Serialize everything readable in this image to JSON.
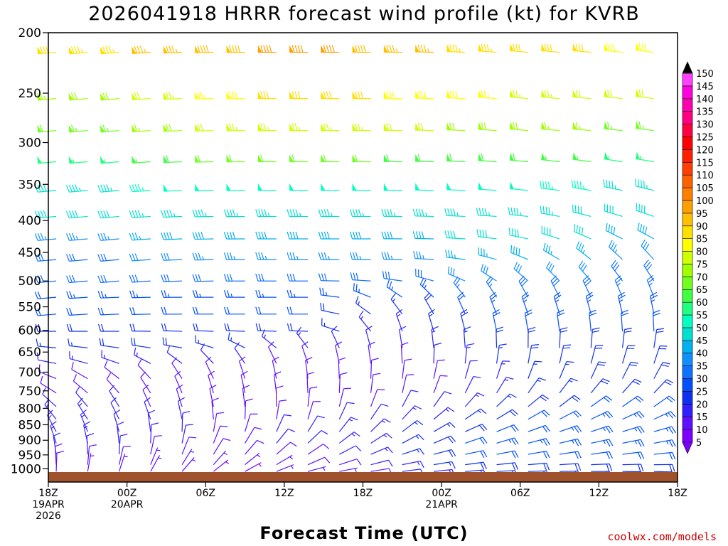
{
  "chart_data": {
    "type": "wind-barb time-height",
    "title": "2026041918 HRRR forecast wind profile (kt) for KVRB",
    "xlabel": "Forecast Time (UTC)",
    "ylabel": "",
    "credit": "coolwx.com/models",
    "y_axis": {
      "scale": "log-pressure",
      "ylim_hpa": [
        1050,
        200
      ],
      "ticks": [
        200,
        250,
        300,
        350,
        400,
        450,
        500,
        550,
        600,
        650,
        700,
        750,
        800,
        850,
        900,
        950,
        1000
      ]
    },
    "x_axis": {
      "range_hours": [
        0,
        48
      ],
      "ticks": [
        {
          "hour": 0,
          "lines": [
            "18Z",
            "19APR",
            "2026"
          ]
        },
        {
          "hour": 6,
          "lines": [
            "00Z",
            "20APR"
          ]
        },
        {
          "hour": 12,
          "lines": [
            "06Z"
          ]
        },
        {
          "hour": 18,
          "lines": [
            "12Z"
          ]
        },
        {
          "hour": 24,
          "lines": [
            "18Z"
          ]
        },
        {
          "hour": 30,
          "lines": [
            "00Z",
            "21APR"
          ]
        },
        {
          "hour": 36,
          "lines": [
            "06Z"
          ]
        },
        {
          "hour": 42,
          "lines": [
            "12Z"
          ]
        },
        {
          "hour": 48,
          "lines": [
            "18Z"
          ]
        }
      ]
    },
    "colorbar": {
      "unit": "kt",
      "levels": [
        5,
        10,
        15,
        20,
        25,
        30,
        35,
        40,
        45,
        50,
        55,
        60,
        65,
        70,
        75,
        80,
        85,
        90,
        95,
        100,
        105,
        110,
        115,
        120,
        125,
        130,
        135,
        140,
        145,
        150
      ],
      "colors": [
        "#8000ff",
        "#6010ff",
        "#3020ff",
        "#1030f0",
        "#0050ff",
        "#1070ff",
        "#1090ff",
        "#00b0f0",
        "#00e0d0",
        "#00ffc0",
        "#20ff80",
        "#40ff40",
        "#70ff20",
        "#a0ff00",
        "#d0ff00",
        "#ffff00",
        "#ffe000",
        "#ffc000",
        "#ffa000",
        "#ff8000",
        "#ff6000",
        "#ff4000",
        "#ff2000",
        "#ff0000",
        "#ff0040",
        "#ff0080",
        "#ff00b0",
        "#ff00e0",
        "#ff40ff",
        "#000000"
      ]
    },
    "levels_hpa": [
      215,
      255,
      287,
      322,
      358,
      394,
      428,
      462,
      500,
      531,
      565,
      602,
      640,
      678,
      717,
      756,
      795,
      833,
      872,
      910,
      948,
      985,
      1010
    ],
    "series": [
      {
        "pressure": 215,
        "speed_kt": [
          80,
          85,
          87,
          90,
          92,
          88,
          85,
          82,
          80,
          78
        ],
        "direction_deg": [
          265,
          265,
          268,
          270,
          270,
          270,
          272,
          275,
          275,
          278
        ]
      },
      {
        "pressure": 255,
        "speed_kt": [
          65,
          70,
          75,
          80,
          82,
          80,
          78,
          75,
          72,
          70
        ],
        "direction_deg": [
          265,
          265,
          268,
          270,
          270,
          270,
          272,
          275,
          275,
          278
        ]
      },
      {
        "pressure": 287,
        "speed_kt": [
          62,
          65,
          70,
          75,
          75,
          72,
          70,
          68,
          65,
          62
        ],
        "direction_deg": [
          265,
          265,
          268,
          270,
          270,
          270,
          272,
          275,
          275,
          278
        ]
      },
      {
        "pressure": 322,
        "speed_kt": [
          50,
          55,
          60,
          62,
          62,
          60,
          58,
          58,
          55,
          52
        ],
        "direction_deg": [
          265,
          265,
          268,
          270,
          270,
          270,
          272,
          275,
          278,
          280
        ]
      },
      {
        "pressure": 358,
        "speed_kt": [
          45,
          45,
          50,
          50,
          50,
          50,
          50,
          48,
          45,
          42
        ],
        "direction_deg": [
          265,
          265,
          268,
          270,
          270,
          270,
          272,
          275,
          280,
          285
        ]
      },
      {
        "pressure": 394,
        "speed_kt": [
          40,
          42,
          45,
          45,
          45,
          45,
          45,
          45,
          42,
          40
        ],
        "direction_deg": [
          265,
          265,
          268,
          270,
          270,
          270,
          272,
          275,
          285,
          290
        ]
      },
      {
        "pressure": 428,
        "speed_kt": [
          35,
          35,
          40,
          40,
          40,
          40,
          40,
          42,
          40,
          38
        ],
        "direction_deg": [
          265,
          265,
          268,
          270,
          270,
          270,
          272,
          280,
          295,
          300
        ]
      },
      {
        "pressure": 462,
        "speed_kt": [
          30,
          30,
          32,
          35,
          35,
          35,
          35,
          38,
          35,
          30
        ],
        "direction_deg": [
          265,
          265,
          268,
          270,
          270,
          270,
          275,
          290,
          310,
          320
        ]
      },
      {
        "pressure": 500,
        "speed_kt": [
          28,
          28,
          30,
          30,
          30,
          30,
          30,
          32,
          30,
          28
        ],
        "direction_deg": [
          265,
          265,
          268,
          270,
          270,
          275,
          290,
          310,
          320,
          330
        ]
      },
      {
        "pressure": 531,
        "speed_kt": [
          22,
          25,
          25,
          25,
          25,
          22,
          25,
          28,
          28,
          25
        ],
        "direction_deg": [
          265,
          268,
          270,
          270,
          270,
          300,
          320,
          330,
          335,
          340
        ]
      },
      {
        "pressure": 565,
        "speed_kt": [
          20,
          22,
          22,
          22,
          20,
          15,
          20,
          25,
          25,
          22
        ],
        "direction_deg": [
          265,
          268,
          270,
          270,
          270,
          320,
          335,
          340,
          345,
          350
        ]
      },
      {
        "pressure": 602,
        "speed_kt": [
          18,
          20,
          20,
          20,
          18,
          12,
          18,
          22,
          22,
          20
        ],
        "direction_deg": [
          270,
          270,
          272,
          272,
          272,
          340,
          345,
          350,
          355,
          358
        ]
      },
      {
        "pressure": 640,
        "speed_kt": [
          15,
          18,
          18,
          15,
          12,
          10,
          15,
          20,
          20,
          18
        ],
        "direction_deg": [
          275,
          278,
          280,
          300,
          330,
          350,
          355,
          360,
          5,
          10
        ]
      },
      {
        "pressure": 678,
        "speed_kt": [
          12,
          15,
          12,
          10,
          8,
          8,
          12,
          18,
          20,
          18
        ],
        "direction_deg": [
          280,
          290,
          310,
          330,
          345,
          355,
          5,
          10,
          15,
          20
        ]
      },
      {
        "pressure": 717,
        "speed_kt": [
          10,
          10,
          8,
          8,
          8,
          8,
          10,
          15,
          18,
          18
        ],
        "direction_deg": [
          290,
          310,
          330,
          345,
          355,
          5,
          15,
          20,
          25,
          30
        ]
      },
      {
        "pressure": 756,
        "speed_kt": [
          10,
          8,
          8,
          8,
          8,
          8,
          10,
          15,
          18,
          20
        ],
        "direction_deg": [
          300,
          320,
          340,
          350,
          360,
          10,
          25,
          35,
          40,
          45
        ]
      },
      {
        "pressure": 795,
        "speed_kt": [
          12,
          10,
          8,
          8,
          10,
          10,
          12,
          18,
          22,
          22
        ],
        "direction_deg": [
          310,
          330,
          345,
          355,
          10,
          25,
          40,
          50,
          55,
          55
        ]
      },
      {
        "pressure": 833,
        "speed_kt": [
          15,
          12,
          10,
          10,
          10,
          12,
          15,
          20,
          25,
          25
        ],
        "direction_deg": [
          320,
          335,
          350,
          5,
          20,
          40,
          55,
          60,
          65,
          65
        ]
      },
      {
        "pressure": 872,
        "speed_kt": [
          15,
          12,
          10,
          10,
          12,
          15,
          18,
          22,
          25,
          25
        ],
        "direction_deg": [
          330,
          345,
          5,
          20,
          35,
          50,
          65,
          70,
          72,
          75
        ]
      },
      {
        "pressure": 910,
        "speed_kt": [
          15,
          12,
          10,
          10,
          12,
          15,
          20,
          25,
          25,
          25
        ],
        "direction_deg": [
          340,
          355,
          15,
          35,
          50,
          60,
          70,
          75,
          78,
          80
        ]
      },
      {
        "pressure": 948,
        "speed_kt": [
          12,
          10,
          8,
          8,
          10,
          15,
          20,
          22,
          22,
          22
        ],
        "direction_deg": [
          350,
          5,
          25,
          45,
          60,
          70,
          78,
          80,
          82,
          85
        ]
      },
      {
        "pressure": 985,
        "speed_kt": [
          10,
          8,
          6,
          6,
          8,
          12,
          18,
          20,
          20,
          20
        ],
        "direction_deg": [
          355,
          15,
          35,
          55,
          70,
          78,
          82,
          85,
          88,
          90
        ]
      },
      {
        "pressure": 1010,
        "speed_kt": [
          8,
          6,
          5,
          5,
          6,
          10,
          15,
          18,
          18,
          18
        ],
        "direction_deg": [
          360,
          20,
          45,
          65,
          78,
          82,
          85,
          88,
          90,
          92
        ]
      }
    ],
    "series_hours": [
      0,
      6,
      11,
      16,
      21,
      26,
      31,
      36,
      42,
      48
    ],
    "surface_fill_color": "#a0522d"
  }
}
